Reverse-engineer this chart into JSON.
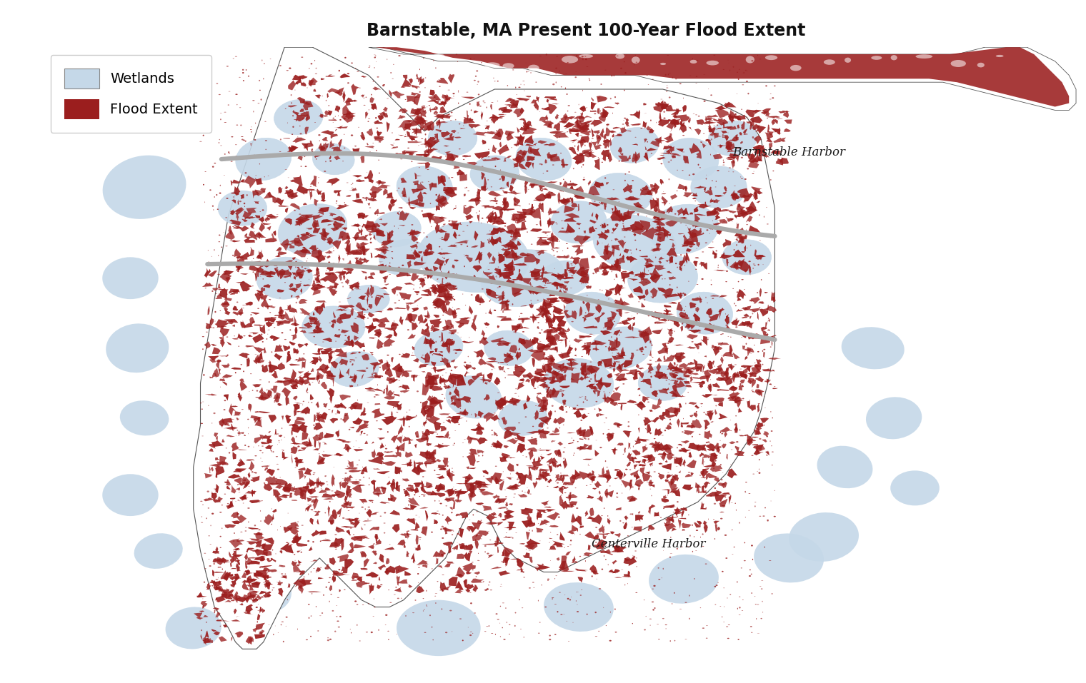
{
  "title": "Barnstable, MA Present 100-Year Flood Extent",
  "title_fontsize": 17,
  "title_fontweight": "bold",
  "background_color": "#ffffff",
  "water_color": "#c5d8e8",
  "land_color": "#ffffff",
  "flood_color": "#9b1e1e",
  "wetland_color": "#c5d8e8",
  "road_color": "#aaaaaa",
  "border_color": "#555555",
  "legend_wetlands": "Wetlands",
  "legend_flood": "Flood Extent",
  "label_barnstable": "Barnstable Harbor",
  "label_centerville": "Centerville Harbor",
  "label_fontsize": 12,
  "fig_width": 15.2,
  "fig_height": 9.57,
  "dpi": 100
}
